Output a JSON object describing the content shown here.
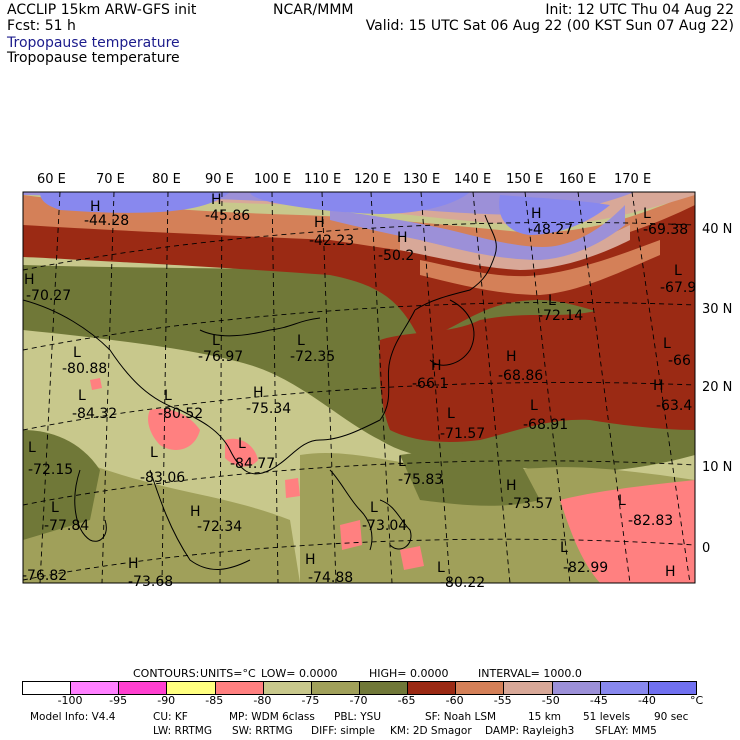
{
  "header": {
    "model_line": "ACCLIP 15km ARW-GFS init",
    "forecast_line": "Fcst:    51 h",
    "org": "NCAR/MMM",
    "init_line": "Init: 12 UTC Thu 04 Aug 22",
    "valid_line": "Valid: 15 UTC Sat 06 Aug 22 (00 KST Sun 07 Aug 22)",
    "field_title_blue": "Tropopause temperature",
    "field_title_black": "Tropopause temperature"
  },
  "map": {
    "lon_labels": [
      "60 E",
      "70 E",
      "80 E",
      "90 E",
      "100 E",
      "110 E",
      "120 E",
      "130 E",
      "140 E",
      "150 E",
      "160 E",
      "170 E"
    ],
    "lat_labels": [
      "40 N",
      "30 N",
      "20 N",
      "10 N",
      "0"
    ],
    "extrema": [
      {
        "label": "H",
        "value": "-44.28"
      },
      {
        "label": "H",
        "value": "-45.86"
      },
      {
        "label": "H",
        "value": "-42.23"
      },
      {
        "label": "H",
        "value": "-50.2"
      },
      {
        "label": "H",
        "value": "-48.27"
      },
      {
        "label": "L",
        "value": "-69.38"
      },
      {
        "label": "H",
        "value": "-70.27"
      },
      {
        "label": "L",
        "value": "-67.9"
      },
      {
        "label": "L",
        "value": "-72.14"
      },
      {
        "label": "L",
        "value": "-80.88"
      },
      {
        "label": "L",
        "value": "-76.97"
      },
      {
        "label": "L",
        "value": "-72.35"
      },
      {
        "label": "L",
        "value": "-66"
      },
      {
        "label": "L",
        "value": "-84.32"
      },
      {
        "label": "L",
        "value": "-80.52"
      },
      {
        "label": "H",
        "value": "-75.34"
      },
      {
        "label": "H",
        "value": "-66.1"
      },
      {
        "label": "H",
        "value": "-68.86"
      },
      {
        "label": "H",
        "value": "-63.4"
      },
      {
        "label": "L",
        "value": "-71.57"
      },
      {
        "label": "L",
        "value": "-68.91"
      },
      {
        "label": "L",
        "value": "-72.15"
      },
      {
        "label": "L",
        "value": "-83.06"
      },
      {
        "label": "L",
        "value": "-84.77"
      },
      {
        "label": "L",
        "value": "-75.83"
      },
      {
        "label": "H",
        "value": "-73.57"
      },
      {
        "label": "L",
        "value": "-77.84"
      },
      {
        "label": "H",
        "value": "-72.34"
      },
      {
        "label": "L",
        "value": "-73.04"
      },
      {
        "label": "L",
        "value": "-82.83"
      },
      {
        "label": "L",
        "value": "-82.99"
      },
      {
        "label": "H",
        "value": "-73.68"
      },
      {
        "label": "H",
        "value": "-74.88"
      },
      {
        "label": "L",
        "value": "-80.22"
      },
      {
        "label": "L",
        "value": "-76.82"
      },
      {
        "label": "H",
        "value": ""
      }
    ]
  },
  "contours_line": {
    "contours": "CONTOURS:",
    "units": "UNITS=°C",
    "low": "LOW=  0.0000",
    "high": "HIGH=  0.0000",
    "interval": "INTERVAL=    1000.0"
  },
  "colorbar": {
    "colors": [
      "#ffffff",
      "#ff80ff",
      "#ff40d0",
      "#ffff80",
      "#ff8080",
      "#c8c88c",
      "#a0a05a",
      "#707838",
      "#9b2a14",
      "#d48058",
      "#d8a898",
      "#9c90d8",
      "#8888ee",
      "#7070f0"
    ],
    "labels": [
      "-100",
      "-95",
      "-90",
      "-85",
      "-80",
      "-75",
      "-70",
      "-65",
      "-60",
      "-55",
      "-50",
      "-45",
      "-40"
    ],
    "unit_label": "°C"
  },
  "footer": {
    "line1": [
      "Model Info: V4.4",
      "CU: KF",
      "MP: WDM 6class",
      "PBL: YSU",
      "SF: Noah LSM",
      "15 km",
      "51 levels",
      "90 sec"
    ],
    "line2": [
      "LW: RRTMG",
      "SW: RRTMG",
      "DIFF: simple",
      "KM: 2D Smagor",
      "DAMP: Rayleigh3",
      "SFLAY: MM5"
    ]
  }
}
